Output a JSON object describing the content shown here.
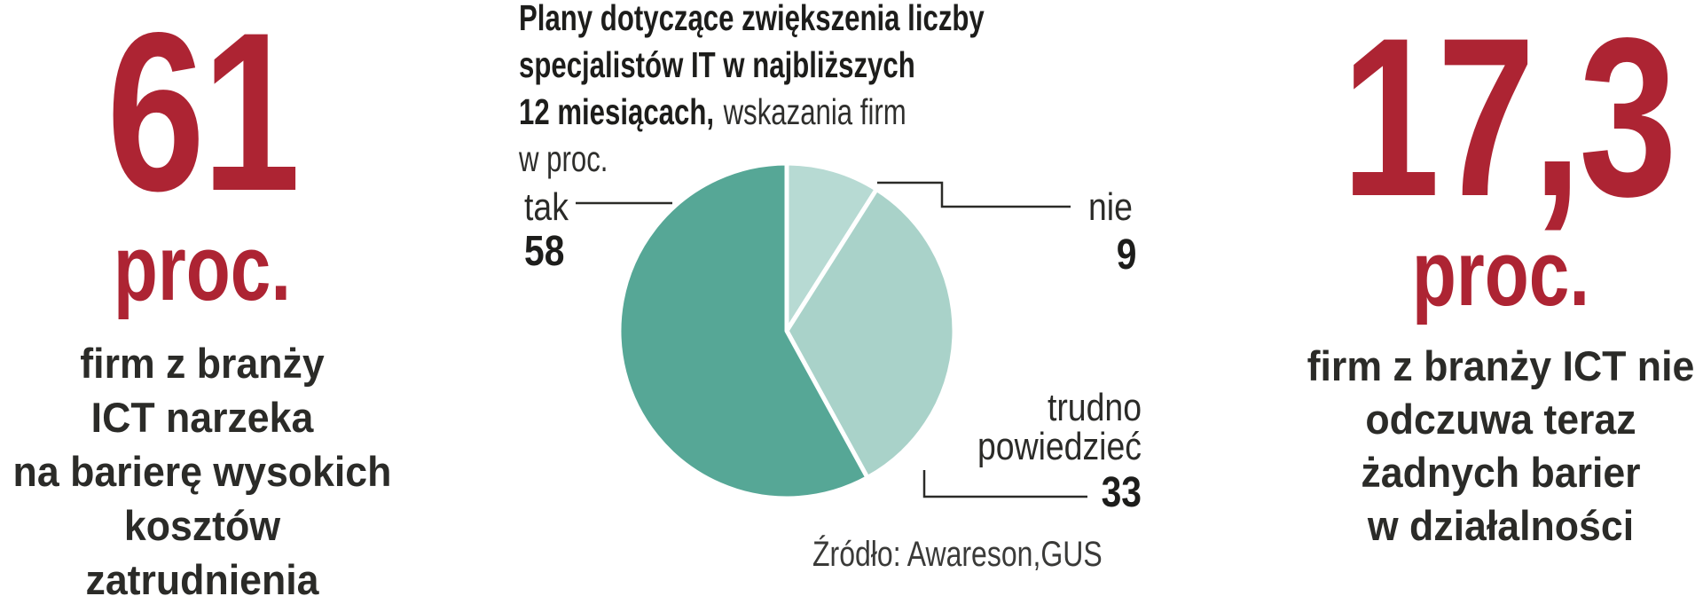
{
  "colors": {
    "accent_red": "#ad2433",
    "text_dark": "#2b2b28",
    "title_black": "#1d1d1b",
    "line": "#2b2b28",
    "background": "#ffffff"
  },
  "left_stat": {
    "value": "61",
    "unit": "proc.",
    "description_lines": [
      "firm z branży",
      "ICT narzeka",
      "na barierę wysokich",
      "kosztów zatrudnienia"
    ]
  },
  "right_stat": {
    "value": "17,3",
    "unit": "proc.",
    "description_lines": [
      "firm z branży ICT nie",
      "odczuwa teraz",
      "żadnych barier",
      "w działalności"
    ]
  },
  "chart": {
    "title_line1": "Plany dotyczące zwiększenia liczby",
    "title_line2": "specjalistów IT w najbliższych",
    "title_line3_bold": "12 miesiącach,",
    "title_line3_regular": "wskazania firm",
    "title_line4": "w proc.",
    "source": "Źródło: Awareson,GUS",
    "callouts": {
      "tak": {
        "label": "tak",
        "value": "58"
      },
      "nie": {
        "label": "nie",
        "value": "9"
      },
      "trudno": {
        "label_line1": "trudno",
        "label_line2": "powiedzieć",
        "value": "33"
      }
    }
  },
  "chart_data": {
    "type": "pie",
    "title": "Plany dotyczące zwiększenia liczby specjalistów IT w najbliższych 12 miesiącach, wskazania firm w proc.",
    "categories": [
      "nie",
      "trudno powiedzieć",
      "tak"
    ],
    "values": [
      9,
      33,
      58
    ],
    "colors": [
      "#b7dad3",
      "#a9d2c9",
      "#56a796"
    ],
    "start_angle": "12 o'clock",
    "direction": "clockwise",
    "slice_gap_color": "#ffffff",
    "legend": "none",
    "source": "Źródło: Awareson,GUS"
  }
}
